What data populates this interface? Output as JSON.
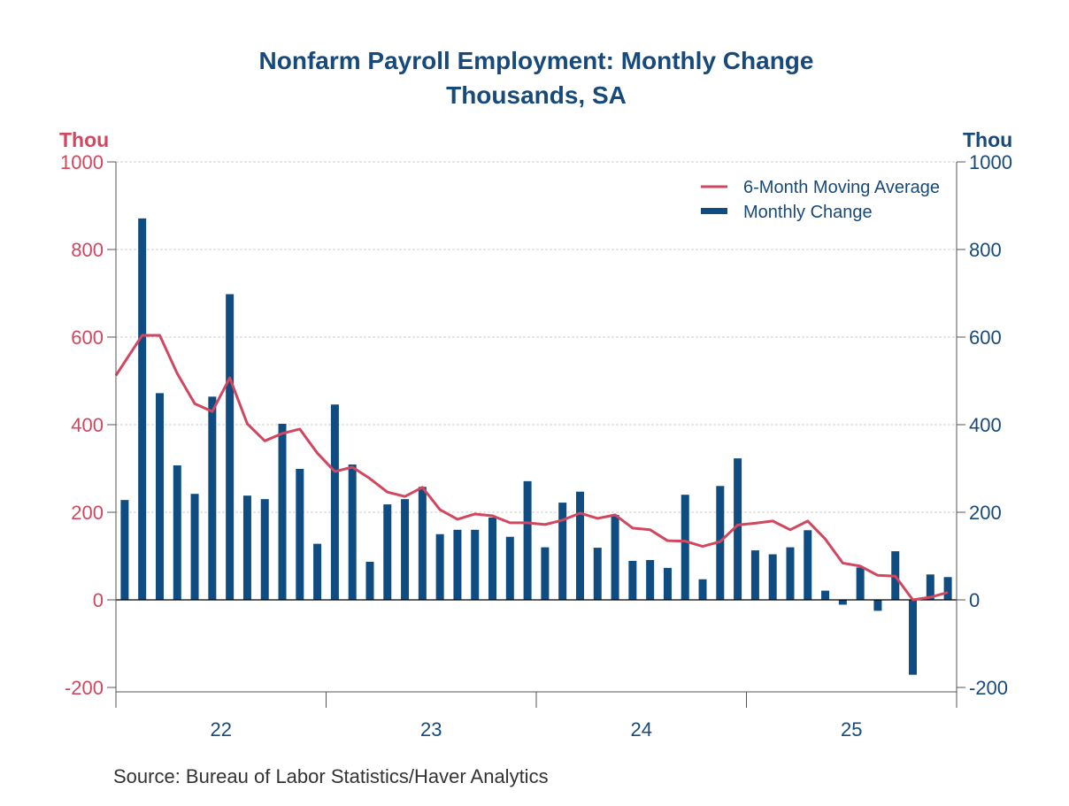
{
  "chart_data": {
    "type": "bar",
    "title": "Nonfarm Payroll Employment: Monthly Change",
    "subtitle": "Thousands, SA",
    "ylabel_left": "Thou",
    "ylabel_right": "Thou",
    "ylim": [
      -200,
      1000
    ],
    "yticks": [
      -200,
      0,
      200,
      400,
      600,
      800,
      1000
    ],
    "xtick_labels": [
      "22",
      "23",
      "24",
      "25"
    ],
    "grid": true,
    "legend_position": "top-right",
    "series": [
      {
        "name": "6-Month Moving Average",
        "type": "line",
        "color": "#d0475f",
        "values": [
          543,
          604,
          604,
          517,
          448,
          430,
          507,
          402,
          363,
          380,
          390,
          335,
          293,
          303,
          277,
          246,
          236,
          257,
          206,
          184,
          196,
          192,
          176,
          176,
          172,
          182,
          198,
          186,
          194,
          164,
          160,
          135,
          134,
          122,
          133,
          171,
          175,
          180,
          160,
          180,
          139,
          84,
          77,
          56,
          54,
          0,
          6,
          17
        ]
      },
      {
        "name": "Monthly Change",
        "type": "bar",
        "color": "#0f4c81",
        "values": [
          228,
          871,
          472,
          307,
          242,
          464,
          698,
          238,
          230,
          402,
          299,
          128,
          446,
          309,
          87,
          218,
          230,
          258,
          150,
          160,
          160,
          188,
          144,
          271,
          120,
          222,
          247,
          119,
          194,
          89,
          91,
          73,
          240,
          47,
          260,
          323,
          113,
          104,
          120,
          159,
          21,
          -11,
          74,
          -25,
          111,
          -171,
          58,
          52
        ]
      }
    ],
    "source": "Source:  Bureau of Labor Statistics/Haver Analytics"
  }
}
